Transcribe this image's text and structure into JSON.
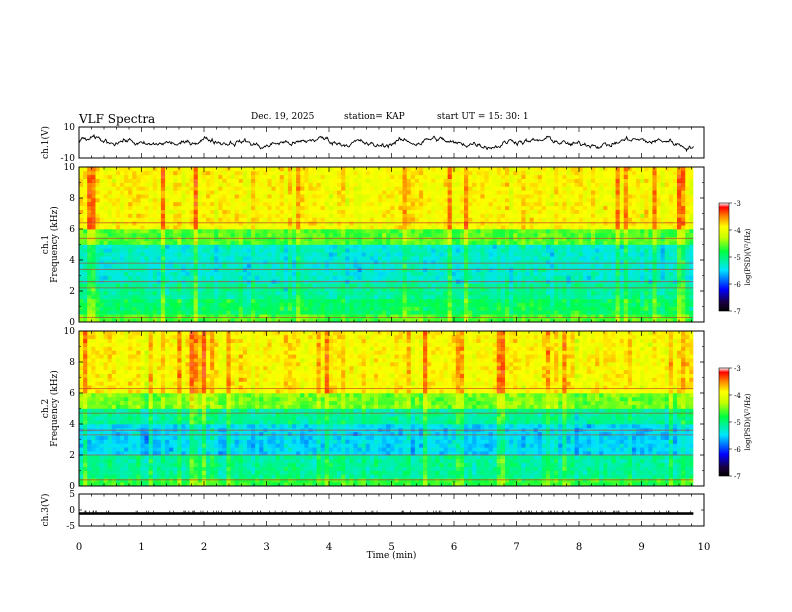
{
  "header": {
    "title": "VLF Spectra",
    "date": "Dec. 19, 2025",
    "station": "station= KAP",
    "start": "start  UT  =   15: 30: 1"
  },
  "chart_data": [
    {
      "type": "line",
      "name": "ch1-waveform",
      "ylabel": "ch.1(V)",
      "ylim": [
        -10,
        10
      ],
      "yticks": [
        "10",
        "-10"
      ],
      "xlim": [
        0,
        10
      ],
      "note": "dense noisy waveform roughly between -8 and 6 V across the full 0-9.8 min span"
    },
    {
      "type": "heatmap",
      "name": "ch1-spectrogram",
      "ylabel": "ch.1\nFrequency (kHz)",
      "ylabel_lines": [
        "ch.1",
        "Frequency (kHz)"
      ],
      "ylim": [
        0,
        10
      ],
      "yticks": [
        "0",
        "2",
        "4",
        "6",
        "8",
        "10"
      ],
      "xlim": [
        0,
        9.83
      ],
      "colorbar": {
        "label": "log(PSD)(V²/Hz)",
        "range": [
          -7,
          -3
        ],
        "ticks": [
          "-3",
          "-4",
          "-5",
          "-6",
          "-7"
        ]
      },
      "frequency_profile": [
        {
          "from": 0.0,
          "to": 0.5,
          "level": -4.6
        },
        {
          "from": 0.5,
          "to": 1.5,
          "level": -4.9
        },
        {
          "from": 1.5,
          "to": 2.5,
          "level": -5.1
        },
        {
          "from": 2.5,
          "to": 5.0,
          "level": -5.3
        },
        {
          "from": 5.0,
          "to": 6.0,
          "level": -4.6
        },
        {
          "from": 6.0,
          "to": 10.0,
          "level": -3.9
        }
      ],
      "lines_khz": [
        0.3,
        2.2,
        2.6,
        3.4,
        3.8,
        5.4,
        6.4
      ]
    },
    {
      "type": "heatmap",
      "name": "ch2-spectrogram",
      "ylabel_lines": [
        "ch.2",
        "Frequency (kHz)"
      ],
      "ylim": [
        0,
        10
      ],
      "yticks": [
        "0",
        "2",
        "4",
        "6",
        "8",
        "10"
      ],
      "xlim": [
        0,
        9.83
      ],
      "colorbar": {
        "label": "log(PSD)(V²/Hz)",
        "range": [
          -7,
          -3
        ],
        "ticks": [
          "-3",
          "-4",
          "-5",
          "-6",
          "-7"
        ]
      },
      "frequency_profile": [
        {
          "from": 0.0,
          "to": 0.5,
          "level": -4.7
        },
        {
          "from": 0.5,
          "to": 2.0,
          "level": -5.1
        },
        {
          "from": 2.0,
          "to": 4.0,
          "level": -5.5
        },
        {
          "from": 4.0,
          "to": 5.0,
          "level": -5.1
        },
        {
          "from": 5.0,
          "to": 6.0,
          "level": -4.5
        },
        {
          "from": 6.0,
          "to": 10.0,
          "level": -3.9
        }
      ],
      "lines_khz": [
        0.4,
        2.0,
        3.3,
        3.6,
        4.7,
        6.3
      ]
    },
    {
      "type": "line",
      "name": "ch3-waveform",
      "ylabel": "ch.3(V)",
      "ylim": [
        -5,
        5
      ],
      "yticks": [
        "5",
        "0",
        "-5"
      ],
      "level": -1.0,
      "xlim": [
        0,
        10
      ]
    }
  ],
  "xaxis": {
    "label": "Time  (min)",
    "ticks": [
      "0",
      "1",
      "2",
      "3",
      "4",
      "5",
      "6",
      "7",
      "8",
      "9",
      "10"
    ],
    "range": [
      0,
      10
    ]
  },
  "colors": {
    "trace": "#000000",
    "frame": "#000000"
  }
}
